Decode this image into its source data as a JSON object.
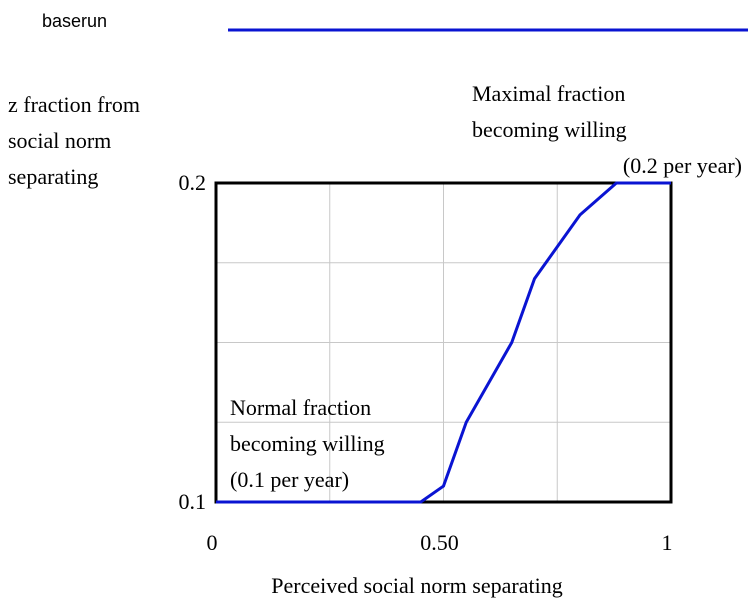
{
  "chart_data": {
    "type": "line",
    "y_label": [
      "z fraction from",
      "social norm",
      "separating"
    ],
    "x_label": "Perceived social norm separating",
    "annotations": [
      {
        "lines": [
          "Maximal fraction",
          "becoming willing",
          "(0.2 per year)"
        ]
      },
      {
        "lines": [
          "Normal fraction",
          "becoming willing",
          "(0.1 per year)"
        ]
      }
    ],
    "x": [
      0,
      0.45,
      0.5,
      0.55,
      0.65,
      0.7,
      0.8,
      0.88,
      1
    ],
    "series": [
      {
        "name": "baserun",
        "color": "#0a14d2",
        "values": [
          0.1,
          0.1,
          0.105,
          0.125,
          0.15,
          0.17,
          0.19,
          0.2,
          0.2
        ]
      }
    ],
    "xlim": [
      0,
      1
    ],
    "ylim": [
      0.1,
      0.2
    ],
    "xticks": [
      0,
      {
        "value": 0.5,
        "label": "0.50"
      },
      1
    ],
    "yticks": [
      0.1,
      0.2
    ],
    "xgrid": [
      0.25,
      0.5,
      0.75
    ],
    "ygrid": [
      0.125,
      0.15,
      0.175
    ],
    "grid": true,
    "legend": "top"
  }
}
